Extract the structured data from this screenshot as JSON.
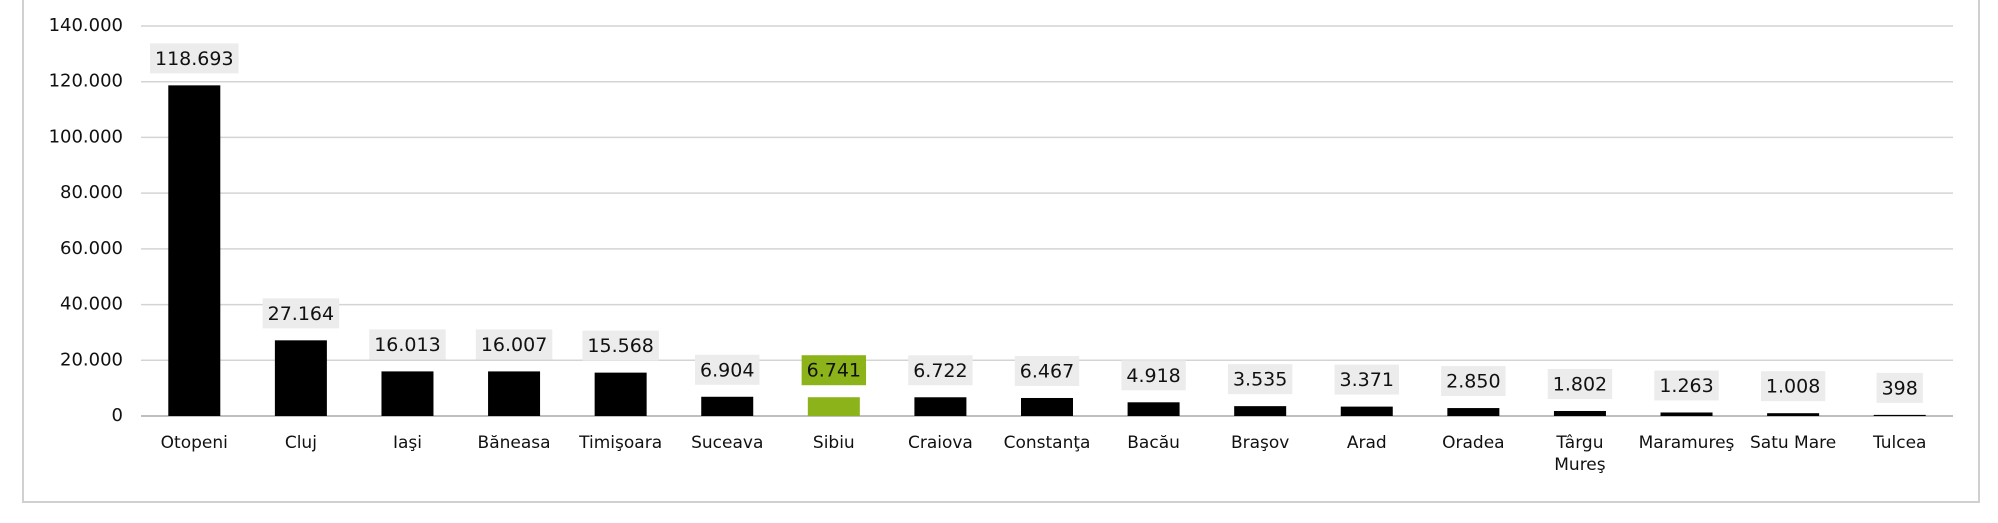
{
  "chart_data": {
    "type": "bar",
    "categories": [
      "Otopeni",
      "Cluj",
      "Iaşi",
      "Băneasa",
      "Timişoara",
      "Suceava",
      "Sibiu",
      "Craiova",
      "Constanţa",
      "Bacău",
      "Braşov",
      "Arad",
      "Oradea",
      "Târgu Mureş",
      "Maramureş",
      "Satu Mare",
      "Tulcea"
    ],
    "values": [
      118693,
      27164,
      16013,
      16007,
      15568,
      6904,
      6741,
      6722,
      6467,
      4918,
      3535,
      3371,
      2850,
      1802,
      1263,
      1008,
      398
    ],
    "value_labels": [
      "118.693",
      "27.164",
      "16.013",
      "16.007",
      "15.568",
      "6.904",
      "6.741",
      "6.722",
      "6.467",
      "4.918",
      "3.535",
      "3.371",
      "2.850",
      "1.802",
      "1.263",
      "1.008",
      "398"
    ],
    "colors": [
      "#000000",
      "#000000",
      "#000000",
      "#000000",
      "#000000",
      "#000000",
      "#8cb31a",
      "#000000",
      "#000000",
      "#000000",
      "#000000",
      "#000000",
      "#000000",
      "#000000",
      "#000000",
      "#000000",
      "#000000"
    ],
    "ylim": [
      0,
      140000
    ],
    "yticks": [
      0,
      {
        "value": 20000,
        "label": "20.000"
      },
      {
        "value": 40000,
        "label": "40.000"
      },
      {
        "value": 60000,
        "label": "60.000"
      },
      {
        "value": 80000,
        "label": "80.000"
      },
      {
        "value": 100000,
        "label": "100.000"
      },
      {
        "value": 120000,
        "label": "120.000"
      },
      {
        "value": 140000,
        "label": "140.000"
      }
    ],
    "grid": true
  }
}
